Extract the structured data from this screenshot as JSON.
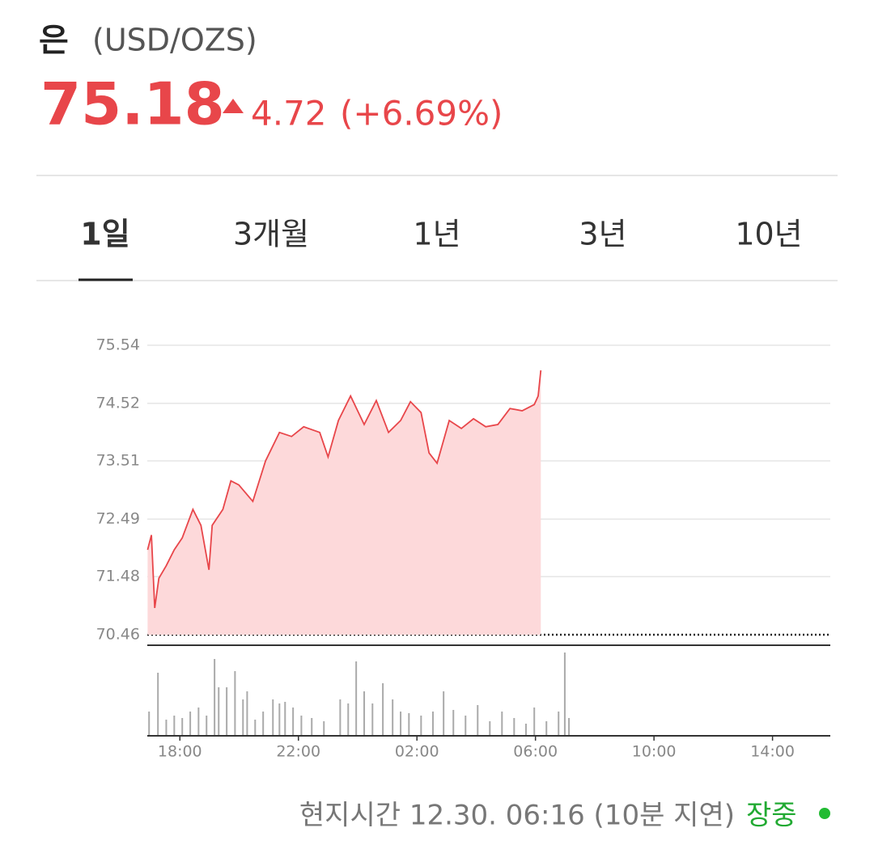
{
  "header": {
    "name": "은",
    "unit": "(USD/OZS)",
    "price": "75.18",
    "change": "4.72",
    "change_pct": "(+6.69%)"
  },
  "tabs": [
    "1일",
    "3개월",
    "1년",
    "3년",
    "10년"
  ],
  "chart_data": {
    "type": "line",
    "area": true,
    "color": "#e8464a",
    "fill": "#fdd9da",
    "grid": true,
    "x": [
      16.91,
      17.04,
      17.15,
      17.29,
      17.54,
      17.81,
      18.08,
      18.44,
      18.71,
      18.98,
      19.09,
      19.45,
      19.72,
      19.99,
      20.46,
      20.89,
      21.36,
      21.77,
      22.18,
      22.72,
      23.0,
      23.35,
      23.76,
      24.22,
      24.63,
      25.04,
      25.45,
      25.78,
      26.14,
      26.41,
      26.68,
      27.09,
      27.5,
      27.91,
      28.32,
      28.73,
      29.14,
      29.55,
      29.96,
      30.09,
      30.18
    ],
    "values": [
      71.95,
      72.21,
      70.93,
      71.45,
      71.67,
      71.95,
      72.16,
      72.66,
      72.38,
      71.6,
      72.38,
      72.66,
      73.16,
      73.09,
      72.8,
      73.51,
      74.01,
      73.94,
      74.11,
      74.01,
      73.58,
      74.22,
      74.65,
      74.15,
      74.57,
      74.01,
      74.22,
      74.55,
      74.36,
      73.65,
      73.47,
      74.22,
      74.08,
      74.25,
      74.11,
      74.15,
      74.43,
      74.39,
      74.5,
      74.65,
      75.1
    ],
    "xlim": [
      16.9,
      39.95
    ],
    "xticks": [
      {
        "value": 18,
        "label": "18:00"
      },
      {
        "value": 22,
        "label": "22:00"
      },
      {
        "value": 26,
        "label": "02:00"
      },
      {
        "value": 30,
        "label": "06:00"
      },
      {
        "value": 34,
        "label": "10:00"
      },
      {
        "value": 38,
        "label": "14:00"
      }
    ],
    "ylim": [
      70.46,
      75.54
    ],
    "yticks": [
      75.54,
      74.52,
      73.51,
      72.49,
      71.48,
      70.46
    ],
    "volume": {
      "color": "#aaaaaa",
      "ylim": [
        0,
        105
      ],
      "x": [
        16.96,
        17.26,
        17.54,
        17.81,
        18.08,
        18.35,
        18.63,
        18.9,
        19.17,
        19.31,
        19.58,
        19.86,
        20.13,
        20.27,
        20.54,
        20.81,
        21.14,
        21.36,
        21.55,
        21.82,
        22.1,
        22.45,
        22.86,
        23.41,
        23.68,
        23.95,
        24.22,
        24.5,
        24.85,
        25.18,
        25.45,
        25.73,
        26.14,
        26.54,
        26.9,
        27.23,
        27.64,
        28.05,
        28.46,
        28.87,
        29.28,
        29.68,
        29.96,
        30.37,
        30.78,
        30.99,
        31.13
      ],
      "values": [
        30,
        78,
        20,
        25,
        22,
        30,
        35,
        25,
        95,
        60,
        60,
        80,
        45,
        55,
        20,
        30,
        45,
        40,
        42,
        35,
        25,
        22,
        18,
        45,
        40,
        92,
        55,
        40,
        65,
        45,
        30,
        28,
        25,
        30,
        55,
        32,
        25,
        38,
        18,
        30,
        22,
        15,
        35,
        18,
        30,
        103,
        22
      ]
    }
  },
  "footer": {
    "time": "현지시간 12.30. 06:16 (10분 지연)",
    "status": "장중"
  }
}
